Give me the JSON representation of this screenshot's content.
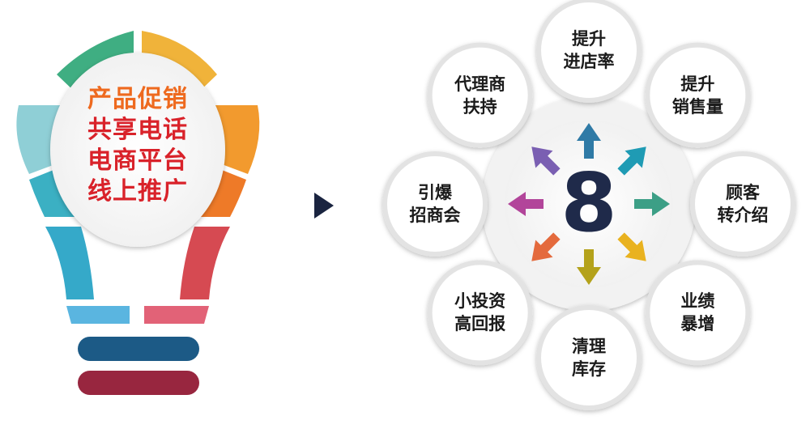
{
  "bulb": {
    "lines": [
      {
        "text": "产品促销",
        "color": "#ee6a1f"
      },
      {
        "text": "共享电话",
        "color": "#d9222a"
      },
      {
        "text": "电商平台",
        "color": "#d9222a"
      },
      {
        "text": "线上推广",
        "color": "#d9222a"
      }
    ],
    "segment_colors": [
      "#3fae82",
      "#f0b33a",
      "#ee7a28",
      "#d64a52",
      "#6cc0d8",
      "#35a9c9",
      "#1c5a86",
      "#98263f"
    ]
  },
  "center": {
    "number": "8"
  },
  "nodes": [
    {
      "line1": "提升",
      "line2": "进店率",
      "arrow_color": "#2f7aa6"
    },
    {
      "line1": "提升",
      "line2": "销售量",
      "arrow_color": "#1f9bb4"
    },
    {
      "line1": "顾客",
      "line2": "转介绍",
      "arrow_color": "#3c9f86"
    },
    {
      "line1": "业绩",
      "line2": "暴增",
      "arrow_color": "#e9b21f"
    },
    {
      "line1": "清理",
      "line2": "库存",
      "arrow_color": "#b4a21b"
    },
    {
      "line1": "小投资",
      "line2": "高回报",
      "arrow_color": "#e46a3d"
    },
    {
      "line1": "引爆",
      "line2": "招商会",
      "arrow_color": "#b2459a"
    },
    {
      "line1": "代理商",
      "line2": "扶持",
      "arrow_color": "#7a5fb2"
    }
  ],
  "pointer": {
    "color": "#1a2440"
  }
}
